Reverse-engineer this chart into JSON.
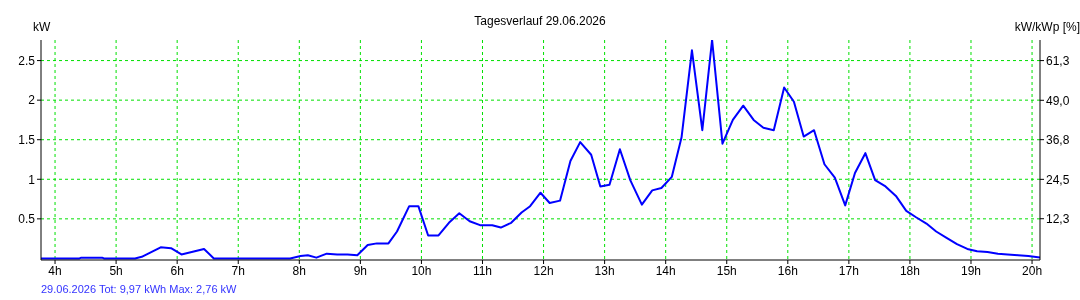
{
  "chart_data": {
    "type": "line",
    "title": "Tagesverlauf 29.06.2026",
    "ylabel": "kW",
    "y2label": "kW/kWp [%]",
    "annotations": [
      "29.06.2026 Tot: 9,97 kWh Max: 2,76 kW"
    ],
    "x": [
      3.77,
      4.4,
      4.43,
      4.77,
      4.8,
      5.31,
      5.42,
      5.73,
      5.9,
      6.07,
      6.44,
      6.6,
      7.85,
      8.02,
      8.14,
      8.28,
      8.45,
      8.62,
      8.79,
      8.95,
      9.12,
      9.27,
      9.46,
      9.6,
      9.8,
      9.95,
      10.11,
      10.28,
      10.45,
      10.62,
      10.79,
      10.96,
      11.16,
      11.3,
      11.47,
      11.64,
      11.78,
      11.95,
      12.1,
      12.27,
      12.44,
      12.6,
      12.78,
      12.93,
      13.08,
      13.25,
      13.42,
      13.61,
      13.78,
      13.93,
      14.1,
      14.26,
      14.43,
      14.6,
      14.76,
      14.93,
      15.1,
      15.27,
      15.44,
      15.6,
      15.77,
      15.94,
      16.1,
      16.26,
      16.43,
      16.6,
      16.77,
      16.94,
      17.1,
      17.27,
      17.43,
      17.6,
      17.77,
      17.94,
      18.1,
      18.27,
      18.43,
      18.6,
      18.77,
      18.94,
      19.1,
      19.27,
      19.44,
      19.6,
      19.77,
      19.94,
      20.13
    ],
    "series": [
      {
        "color": "#0000ff",
        "values": [
          0,
          0,
          0.01,
          0.01,
          0,
          0,
          0.02,
          0.14,
          0.13,
          0.05,
          0.12,
          0,
          0,
          0.03,
          0.04,
          0.01,
          0.06,
          0.05,
          0.05,
          0.04,
          0.17,
          0.19,
          0.19,
          0.34,
          0.66,
          0.66,
          0.29,
          0.29,
          0.45,
          0.57,
          0.47,
          0.42,
          0.42,
          0.39,
          0.45,
          0.58,
          0.66,
          0.83,
          0.7,
          0.73,
          1.23,
          1.47,
          1.31,
          0.91,
          0.93,
          1.38,
          0.99,
          0.68,
          0.86,
          0.89,
          1.03,
          1.53,
          2.63,
          1.62,
          2.76,
          1.45,
          1.75,
          1.93,
          1.75,
          1.65,
          1.62,
          2.16,
          1.98,
          1.54,
          1.62,
          1.19,
          1.02,
          0.67,
          1.08,
          1.33,
          0.99,
          0.91,
          0.79,
          0.6,
          0.52,
          0.44,
          0.34,
          0.26,
          0.18,
          0.12,
          0.09,
          0.08,
          0.06,
          0.05,
          0.04,
          0.03,
          0.01
        ]
      }
    ],
    "xlim": [
      3.77,
      20.13
    ],
    "xticks": [
      {
        "value": 4,
        "label": "4h"
      },
      {
        "value": 5,
        "label": "5h"
      },
      {
        "value": 6,
        "label": "6h"
      },
      {
        "value": 7,
        "label": "7h"
      },
      {
        "value": 8,
        "label": "8h"
      },
      {
        "value": 9,
        "label": "9h"
      },
      {
        "value": 10,
        "label": "10h"
      },
      {
        "value": 11,
        "label": "11h"
      },
      {
        "value": 12,
        "label": "12h"
      },
      {
        "value": 13,
        "label": "13h"
      },
      {
        "value": 14,
        "label": "14h"
      },
      {
        "value": 15,
        "label": "15h"
      },
      {
        "value": 16,
        "label": "16h"
      },
      {
        "value": 17,
        "label": "17h"
      },
      {
        "value": 18,
        "label": "18h"
      },
      {
        "value": 19,
        "label": "19h"
      },
      {
        "value": 20,
        "label": "20h"
      }
    ],
    "ylim": [
      -0.02,
      2.76
    ],
    "yticks": [
      0.5,
      1,
      1.5,
      2,
      2.5
    ],
    "y2lim": [
      -0.49,
      67.68
    ],
    "y2ticks": [
      {
        "value": 12.3,
        "label": "12,3"
      },
      {
        "value": 24.5,
        "label": "24,5"
      },
      {
        "value": 36.8,
        "label": "36,8"
      },
      {
        "value": 49.0,
        "label": "49,0"
      },
      {
        "value": 61.3,
        "label": "61,3"
      }
    ],
    "grid": true,
    "legend": false,
    "marker": "none",
    "line_style": "solid"
  }
}
